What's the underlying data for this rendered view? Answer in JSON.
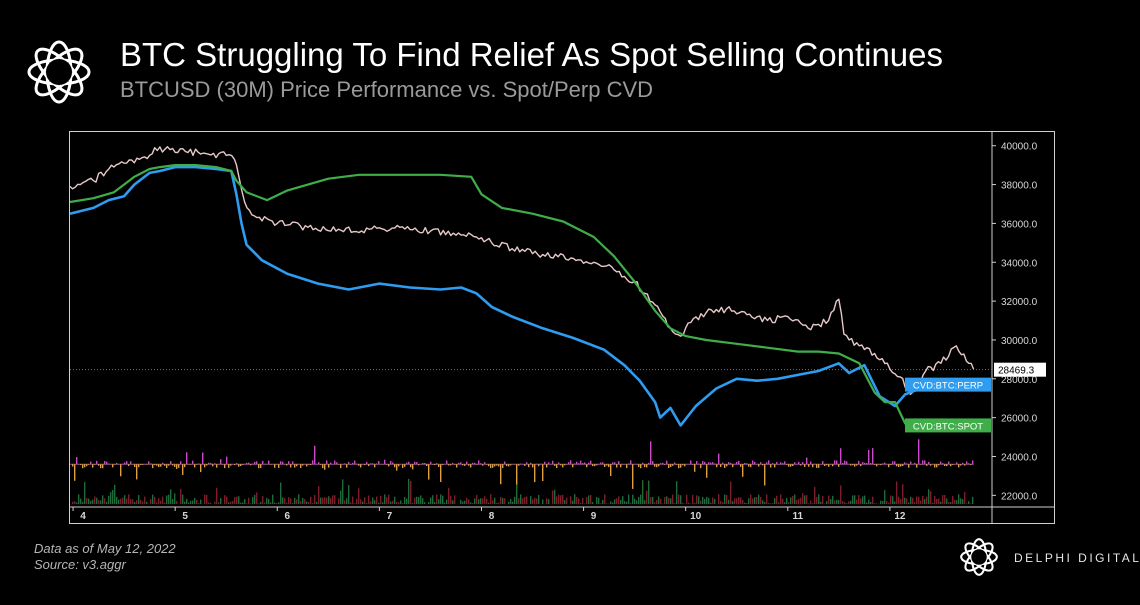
{
  "header": {
    "title": "BTC Struggling To Find Relief As Spot Selling Continues",
    "subtitle": "BTCUSD (30M) Price Performance vs. Spot/Perp CVD"
  },
  "footer": {
    "note_date": "Data as of May 12, 2022",
    "note_source": "Source: v3.aggr",
    "brand": "DELPHI DIGITAL"
  },
  "colors": {
    "price": "#e8c9c9",
    "perp": "#2e9cf0",
    "spot": "#3fae49",
    "volume_up": "#cc49cc",
    "volume_down": "#e0a040"
  },
  "chart_data": {
    "type": "line",
    "x_ticks": [
      "4",
      "5",
      "6",
      "7",
      "8",
      "9",
      "10",
      "11",
      "12"
    ],
    "y_ticks": [
      "40000.0",
      "38000.0",
      "36000.0",
      "34000.0",
      "32000.0",
      "30000.0",
      "28000.0",
      "26000.0",
      "24000.0",
      "22000.0"
    ],
    "ylim": [
      21400,
      40500
    ],
    "xlim": [
      3.97,
      13.0
    ],
    "last_price": "28469.3",
    "last_price_value": 28469.3,
    "series": [
      {
        "name": "BTCUSD",
        "x": [
          3.97,
          4.2,
          4.35,
          4.5,
          4.65,
          4.75,
          4.8,
          4.95,
          5.1,
          5.3,
          5.5,
          5.58,
          5.62,
          5.68,
          5.8,
          6.0,
          6.3,
          6.6,
          6.9,
          7.2,
          7.5,
          7.8,
          7.95,
          8.1,
          8.3,
          8.6,
          8.9,
          9.1,
          9.3,
          9.5,
          9.7,
          9.85,
          9.95,
          10.05,
          10.2,
          10.4,
          10.6,
          10.8,
          11.0,
          11.2,
          11.4,
          11.5,
          11.55,
          11.7,
          11.85,
          12.0,
          12.1,
          12.2,
          12.35,
          12.5,
          12.65,
          12.75,
          12.82
        ],
        "y": [
          37900,
          38200,
          38800,
          39100,
          39300,
          39500,
          39900,
          39800,
          39700,
          39600,
          39500,
          39300,
          38500,
          37100,
          36300,
          36000,
          35800,
          35700,
          35700,
          35800,
          35600,
          35400,
          35300,
          35000,
          34700,
          34400,
          34200,
          34000,
          33600,
          33000,
          31800,
          30600,
          30200,
          30900,
          31400,
          31600,
          31300,
          31000,
          31200,
          30600,
          31000,
          32100,
          30300,
          29700,
          29300,
          28500,
          28100,
          27200,
          28400,
          28800,
          29700,
          28900,
          28500
        ]
      },
      {
        "name": "CVD:BTC:PERP",
        "x": [
          3.97,
          4.2,
          4.35,
          4.5,
          4.6,
          4.75,
          4.85,
          5.0,
          5.2,
          5.4,
          5.55,
          5.6,
          5.65,
          5.7,
          5.85,
          6.1,
          6.4,
          6.7,
          7.0,
          7.3,
          7.6,
          7.8,
          7.95,
          8.1,
          8.3,
          8.6,
          8.9,
          9.2,
          9.4,
          9.55,
          9.7,
          9.75,
          9.85,
          9.95,
          10.1,
          10.3,
          10.5,
          10.7,
          10.9,
          11.1,
          11.3,
          11.5,
          11.6,
          11.75,
          11.9,
          12.05,
          12.15,
          12.3,
          12.45,
          12.6,
          12.75,
          12.82
        ],
        "y": [
          36500,
          36800,
          37200,
          37400,
          38000,
          38600,
          38700,
          38900,
          38900,
          38800,
          38700,
          37500,
          36000,
          34900,
          34100,
          33400,
          32900,
          32600,
          32900,
          32700,
          32600,
          32700,
          32400,
          31700,
          31200,
          30600,
          30100,
          29500,
          28700,
          27900,
          26800,
          26000,
          26500,
          25600,
          26600,
          27500,
          28000,
          27900,
          28000,
          28200,
          28400,
          28800,
          28300,
          28700,
          27100,
          26600,
          27200,
          27500,
          27800,
          27900,
          27700,
          27800
        ]
      },
      {
        "name": "CVD:BTC:SPOT",
        "x": [
          3.97,
          4.2,
          4.4,
          4.6,
          4.75,
          4.85,
          5.0,
          5.2,
          5.4,
          5.55,
          5.6,
          5.7,
          5.9,
          6.1,
          6.3,
          6.5,
          6.8,
          7.2,
          7.6,
          7.9,
          8.0,
          8.2,
          8.5,
          8.8,
          9.1,
          9.3,
          9.5,
          9.7,
          9.85,
          10.0,
          10.2,
          10.5,
          10.8,
          11.1,
          11.3,
          11.5,
          11.7,
          11.85,
          11.95,
          12.05,
          12.15,
          12.3,
          12.5,
          12.7,
          12.82
        ],
        "y": [
          37100,
          37300,
          37600,
          38400,
          38800,
          38900,
          39000,
          39000,
          38900,
          38700,
          38200,
          37600,
          37200,
          37700,
          38000,
          38300,
          38500,
          38500,
          38500,
          38400,
          37500,
          36800,
          36500,
          36100,
          35300,
          34300,
          33000,
          31500,
          30600,
          30200,
          30000,
          29800,
          29600,
          29400,
          29400,
          29300,
          28800,
          27300,
          26800,
          26800,
          25700,
          25400,
          25800,
          25800,
          25600
        ]
      }
    ],
    "volume": {
      "baseline_up": 23600,
      "baseline_down": 21550
    }
  }
}
